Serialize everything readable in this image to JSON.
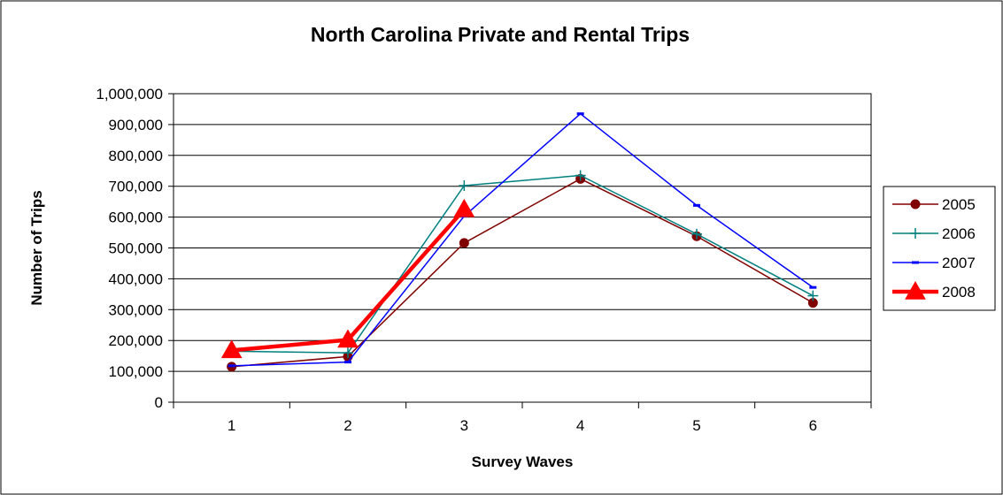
{
  "chart_data": {
    "type": "line",
    "title": "North Carolina Private and Rental Trips",
    "xlabel": "Survey Waves",
    "ylabel": "Number of Trips",
    "x": [
      1,
      2,
      3,
      4,
      5,
      6
    ],
    "x_tick_labels": [
      "1",
      "2",
      "3",
      "4",
      "5",
      "6"
    ],
    "ylim": [
      0,
      1000000
    ],
    "y_tick_values": [
      0,
      100000,
      200000,
      300000,
      400000,
      500000,
      600000,
      700000,
      800000,
      900000,
      1000000
    ],
    "y_tick_labels": [
      "0",
      "100,000",
      "200,000",
      "300,000",
      "400,000",
      "500,000",
      "600,000",
      "700,000",
      "800,000",
      "900,000",
      "1,000,000"
    ],
    "grid": true,
    "legend_position": "right",
    "series": [
      {
        "name": "2005",
        "color": "#800000",
        "marker": "circle",
        "values": [
          115000,
          148000,
          516000,
          724000,
          538000,
          322000
        ]
      },
      {
        "name": "2006",
        "color": "#008080",
        "marker": "plus",
        "values": [
          165000,
          160000,
          702000,
          735000,
          545000,
          345000
        ]
      },
      {
        "name": "2007",
        "color": "#0000ff",
        "marker": "dash",
        "values": [
          118000,
          130000,
          603000,
          935000,
          638000,
          372000
        ]
      },
      {
        "name": "2008",
        "color": "#ff0000",
        "marker": "triangle",
        "values": [
          168000,
          202000,
          625000,
          null,
          null,
          null
        ]
      }
    ]
  }
}
